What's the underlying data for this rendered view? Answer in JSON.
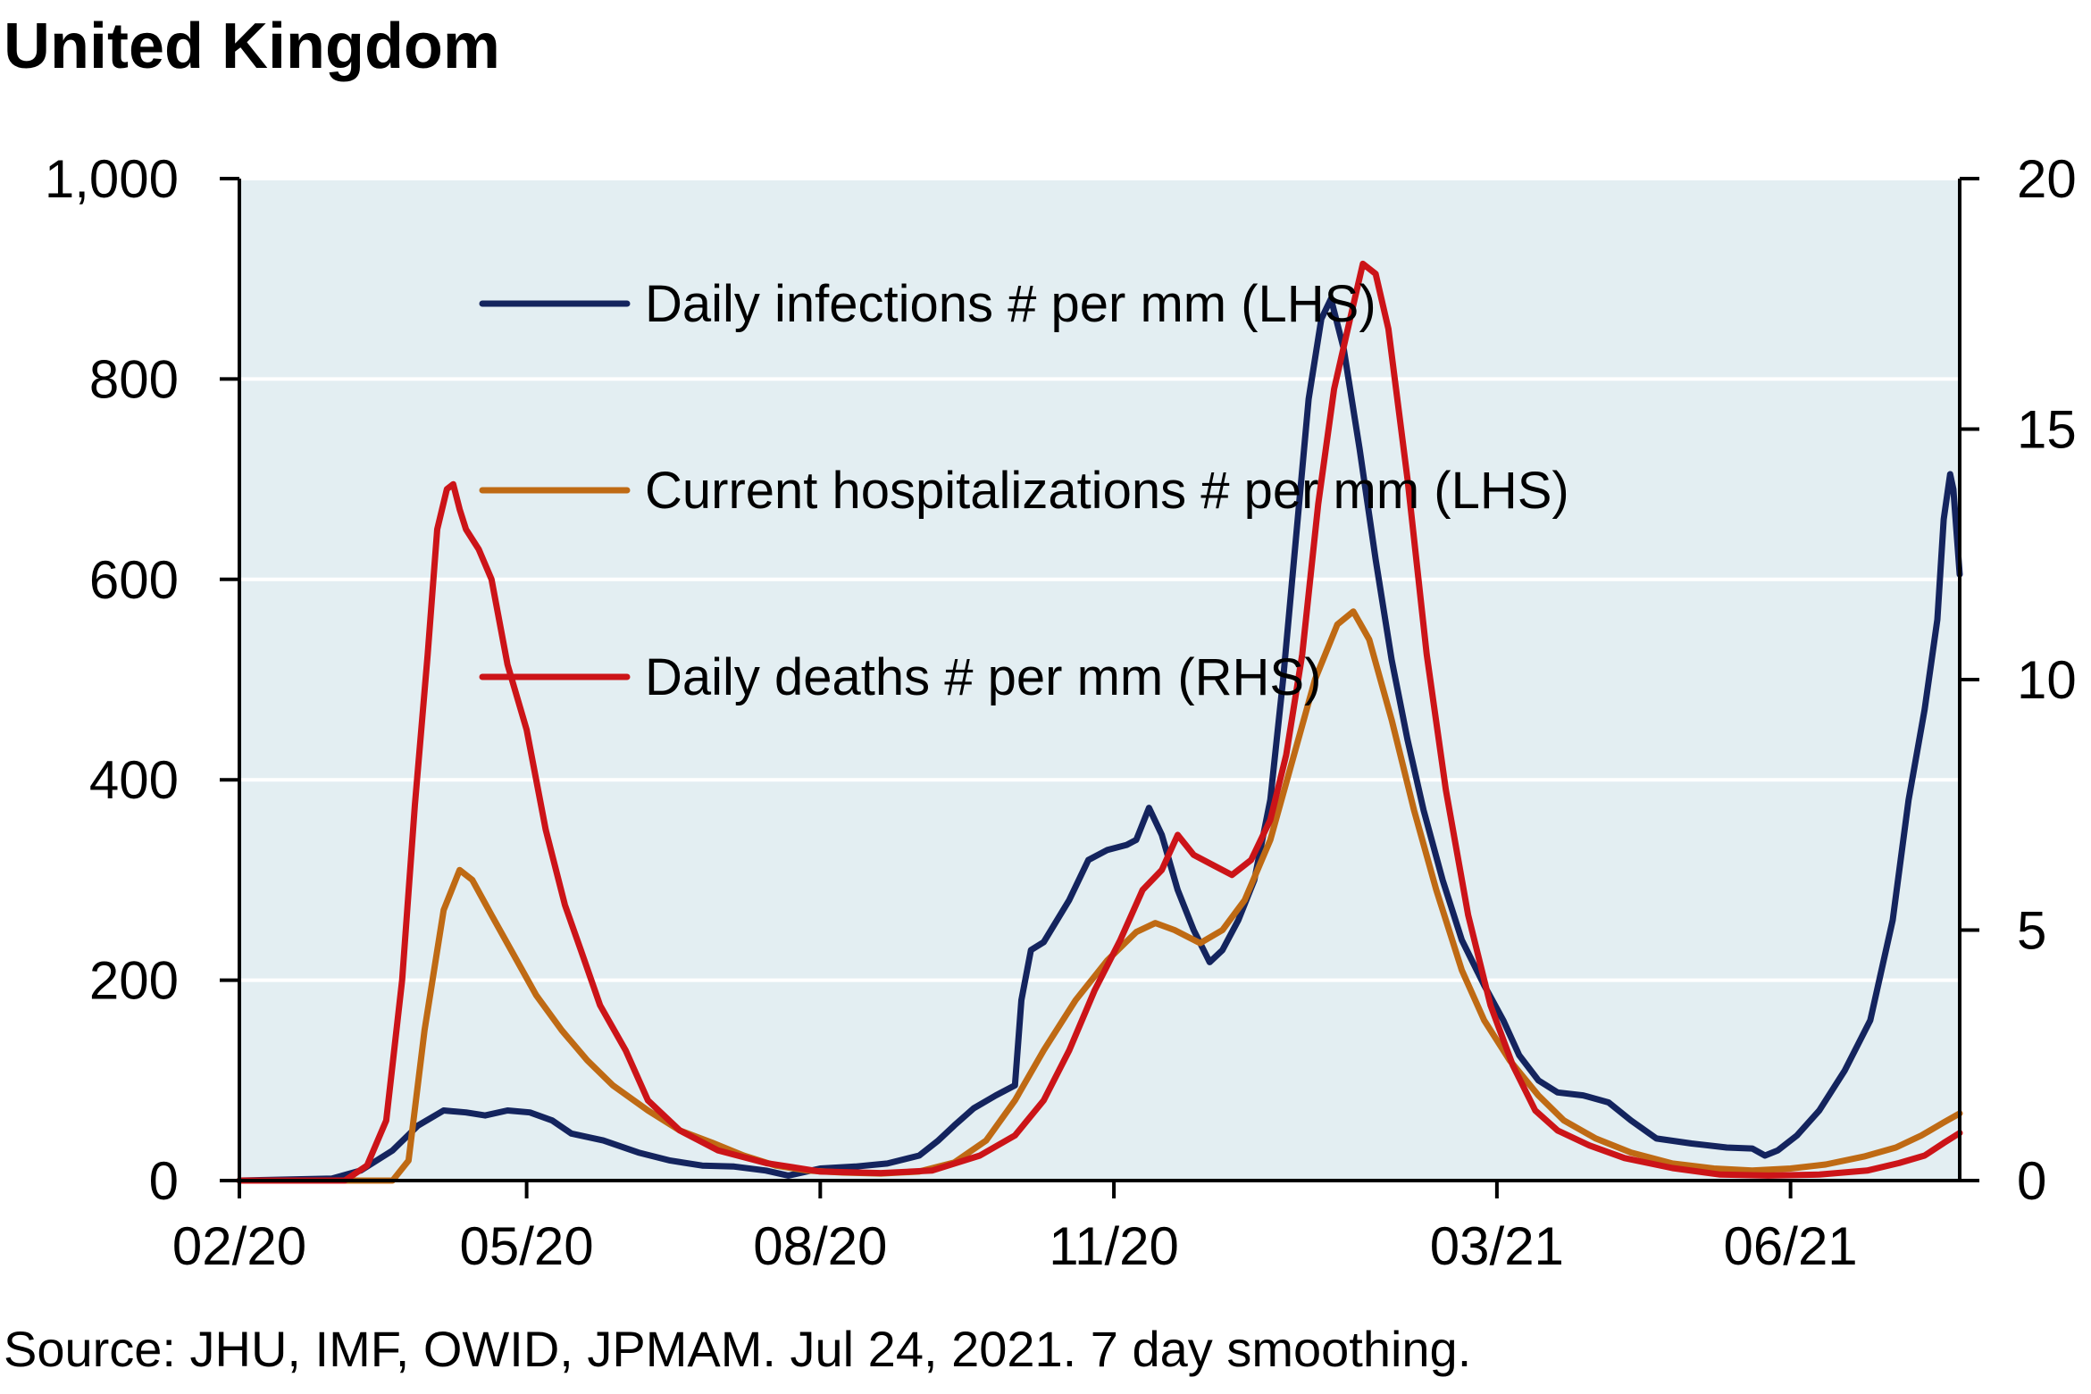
{
  "title": "United Kingdom",
  "source": "Source: JHU, IMF, OWID, JPMAM. Jul 24, 2021. 7 day smoothing.",
  "colors": {
    "plot_background": "#e3eef2",
    "gridline": "#ffffff",
    "infections": "#14245e",
    "hospitalizations": "#bf6a14",
    "deaths": "#cc1418",
    "axis": "#000000"
  },
  "chart_data": {
    "type": "line",
    "title": "United Kingdom",
    "xlabel": "",
    "ylabel": "",
    "y2label": "",
    "grid": true,
    "legend_position": "top-center",
    "ylim": [
      0,
      1000
    ],
    "y2lim": [
      0,
      20
    ],
    "y_ticks": [
      0,
      200,
      400,
      600,
      800,
      1000
    ],
    "y_tick_labels": [
      "0",
      "200",
      "400",
      "600",
      "800",
      "1,000"
    ],
    "y2_ticks": [
      0,
      5,
      10,
      15,
      20
    ],
    "y2_tick_labels": [
      "0",
      "5",
      "10",
      "15",
      "20"
    ],
    "xlim": [
      "2020-02-01",
      "2021-07-24"
    ],
    "x_ticks": [
      "2020-02-01",
      "2020-05-01",
      "2020-08-01",
      "2020-11-01",
      "2021-03-01",
      "2021-06-01"
    ],
    "x_tick_labels": [
      "02/20",
      "05/20",
      "08/20",
      "11/20",
      "03/21",
      "06/21"
    ],
    "series": [
      {
        "name": "Daily infections # per mm (LHS)",
        "axis": "left",
        "color_key": "infections",
        "points": [
          [
            "2020-02-01",
            0
          ],
          [
            "2020-03-01",
            2
          ],
          [
            "2020-03-10",
            10
          ],
          [
            "2020-03-20",
            30
          ],
          [
            "2020-03-28",
            55
          ],
          [
            "2020-04-05",
            70
          ],
          [
            "2020-04-12",
            68
          ],
          [
            "2020-04-18",
            65
          ],
          [
            "2020-04-25",
            70
          ],
          [
            "2020-05-02",
            68
          ],
          [
            "2020-05-09",
            60
          ],
          [
            "2020-05-15",
            47
          ],
          [
            "2020-05-25",
            40
          ],
          [
            "2020-06-05",
            28
          ],
          [
            "2020-06-15",
            20
          ],
          [
            "2020-06-25",
            15
          ],
          [
            "2020-07-05",
            14
          ],
          [
            "2020-07-15",
            10
          ],
          [
            "2020-07-22",
            5
          ],
          [
            "2020-08-01",
            12
          ],
          [
            "2020-08-12",
            14
          ],
          [
            "2020-08-22",
            17
          ],
          [
            "2020-09-01",
            25
          ],
          [
            "2020-09-07",
            40
          ],
          [
            "2020-09-12",
            55
          ],
          [
            "2020-09-18",
            72
          ],
          [
            "2020-09-25",
            85
          ],
          [
            "2020-10-01",
            95
          ],
          [
            "2020-10-03",
            180
          ],
          [
            "2020-10-06",
            230
          ],
          [
            "2020-10-10",
            238
          ],
          [
            "2020-10-18",
            280
          ],
          [
            "2020-10-24",
            320
          ],
          [
            "2020-10-30",
            330
          ],
          [
            "2020-11-05",
            335
          ],
          [
            "2020-11-08",
            340
          ],
          [
            "2020-11-12",
            372
          ],
          [
            "2020-11-16",
            345
          ],
          [
            "2020-11-21",
            290
          ],
          [
            "2020-11-26",
            250
          ],
          [
            "2020-12-01",
            218
          ],
          [
            "2020-12-05",
            230
          ],
          [
            "2020-12-10",
            260
          ],
          [
            "2020-12-15",
            300
          ],
          [
            "2020-12-20",
            380
          ],
          [
            "2020-12-24",
            500
          ],
          [
            "2020-12-28",
            640
          ],
          [
            "2021-01-01",
            780
          ],
          [
            "2021-01-05",
            860
          ],
          [
            "2021-01-08",
            880
          ],
          [
            "2021-01-12",
            830
          ],
          [
            "2021-01-17",
            730
          ],
          [
            "2021-01-22",
            620
          ],
          [
            "2021-01-27",
            520
          ],
          [
            "2021-02-01",
            440
          ],
          [
            "2021-02-06",
            370
          ],
          [
            "2021-02-12",
            300
          ],
          [
            "2021-02-18",
            240
          ],
          [
            "2021-02-25",
            195
          ],
          [
            "2021-03-03",
            160
          ],
          [
            "2021-03-08",
            125
          ],
          [
            "2021-03-14",
            100
          ],
          [
            "2021-03-20",
            88
          ],
          [
            "2021-03-28",
            85
          ],
          [
            "2021-04-05",
            78
          ],
          [
            "2021-04-12",
            60
          ],
          [
            "2021-04-20",
            42
          ],
          [
            "2021-05-01",
            37
          ],
          [
            "2021-05-12",
            33
          ],
          [
            "2021-05-20",
            32
          ],
          [
            "2021-05-24",
            25
          ],
          [
            "2021-05-28",
            30
          ],
          [
            "2021-06-03",
            45
          ],
          [
            "2021-06-10",
            70
          ],
          [
            "2021-06-18",
            110
          ],
          [
            "2021-06-26",
            160
          ],
          [
            "2021-07-03",
            260
          ],
          [
            "2021-07-08",
            380
          ],
          [
            "2021-07-13",
            470
          ],
          [
            "2021-07-17",
            560
          ],
          [
            "2021-07-19",
            660
          ],
          [
            "2021-07-21",
            705
          ],
          [
            "2021-07-22",
            690
          ],
          [
            "2021-07-24",
            605
          ]
        ]
      },
      {
        "name": "Current hospitalizations # per mm (LHS)",
        "axis": "left",
        "color_key": "hospitalizations",
        "points": [
          [
            "2020-02-01",
            0
          ],
          [
            "2020-03-20",
            0
          ],
          [
            "2020-03-25",
            20
          ],
          [
            "2020-03-30",
            150
          ],
          [
            "2020-04-05",
            270
          ],
          [
            "2020-04-10",
            310
          ],
          [
            "2020-04-14",
            300
          ],
          [
            "2020-04-20",
            265
          ],
          [
            "2020-04-27",
            225
          ],
          [
            "2020-05-04",
            185
          ],
          [
            "2020-05-12",
            150
          ],
          [
            "2020-05-20",
            120
          ],
          [
            "2020-05-28",
            95
          ],
          [
            "2020-06-08",
            70
          ],
          [
            "2020-06-18",
            50
          ],
          [
            "2020-06-28",
            38
          ],
          [
            "2020-07-08",
            25
          ],
          [
            "2020-07-18",
            15
          ],
          [
            "2020-07-28",
            10
          ],
          [
            "2020-08-08",
            8
          ],
          [
            "2020-08-20",
            7
          ],
          [
            "2020-09-01",
            9
          ],
          [
            "2020-09-12",
            18
          ],
          [
            "2020-09-22",
            40
          ],
          [
            "2020-10-01",
            80
          ],
          [
            "2020-10-10",
            130
          ],
          [
            "2020-10-20",
            180
          ],
          [
            "2020-10-30",
            220
          ],
          [
            "2020-11-08",
            248
          ],
          [
            "2020-11-14",
            257
          ],
          [
            "2020-11-20",
            250
          ],
          [
            "2020-11-28",
            237
          ],
          [
            "2020-12-05",
            250
          ],
          [
            "2020-12-12",
            280
          ],
          [
            "2020-12-20",
            340
          ],
          [
            "2020-12-27",
            420
          ],
          [
            "2021-01-03",
            500
          ],
          [
            "2021-01-10",
            555
          ],
          [
            "2021-01-15",
            568
          ],
          [
            "2021-01-20",
            540
          ],
          [
            "2021-01-27",
            460
          ],
          [
            "2021-02-03",
            370
          ],
          [
            "2021-02-10",
            290
          ],
          [
            "2021-02-18",
            210
          ],
          [
            "2021-02-25",
            160
          ],
          [
            "2021-03-05",
            120
          ],
          [
            "2021-03-14",
            85
          ],
          [
            "2021-03-22",
            60
          ],
          [
            "2021-04-01",
            42
          ],
          [
            "2021-04-12",
            28
          ],
          [
            "2021-04-25",
            17
          ],
          [
            "2021-05-08",
            12
          ],
          [
            "2021-05-20",
            10
          ],
          [
            "2021-06-01",
            12
          ],
          [
            "2021-06-12",
            16
          ],
          [
            "2021-06-24",
            24
          ],
          [
            "2021-07-04",
            33
          ],
          [
            "2021-07-12",
            45
          ],
          [
            "2021-07-19",
            58
          ],
          [
            "2021-07-24",
            67
          ]
        ]
      },
      {
        "name": "Daily deaths # per mm (RHS)",
        "axis": "right",
        "color_key": "deaths",
        "points": [
          [
            "2020-02-01",
            0
          ],
          [
            "2020-03-05",
            0
          ],
          [
            "2020-03-12",
            0.3
          ],
          [
            "2020-03-18",
            1.2
          ],
          [
            "2020-03-23",
            4.0
          ],
          [
            "2020-03-27",
            7.5
          ],
          [
            "2020-03-31",
            10.5
          ],
          [
            "2020-04-03",
            13.0
          ],
          [
            "2020-04-06",
            13.8
          ],
          [
            "2020-04-08",
            13.9
          ],
          [
            "2020-04-10",
            13.4
          ],
          [
            "2020-04-12",
            13.0
          ],
          [
            "2020-04-16",
            12.6
          ],
          [
            "2020-04-20",
            12.0
          ],
          [
            "2020-04-25",
            10.3
          ],
          [
            "2020-05-01",
            9.0
          ],
          [
            "2020-05-07",
            7.0
          ],
          [
            "2020-05-13",
            5.5
          ],
          [
            "2020-05-18",
            4.6
          ],
          [
            "2020-05-24",
            3.5
          ],
          [
            "2020-06-01",
            2.6
          ],
          [
            "2020-06-08",
            1.6
          ],
          [
            "2020-06-18",
            1.0
          ],
          [
            "2020-06-30",
            0.6
          ],
          [
            "2020-07-15",
            0.35
          ],
          [
            "2020-08-01",
            0.18
          ],
          [
            "2020-08-20",
            0.15
          ],
          [
            "2020-09-05",
            0.2
          ],
          [
            "2020-09-20",
            0.5
          ],
          [
            "2020-10-01",
            0.9
          ],
          [
            "2020-10-10",
            1.6
          ],
          [
            "2020-10-18",
            2.6
          ],
          [
            "2020-10-26",
            3.8
          ],
          [
            "2020-11-03",
            4.8
          ],
          [
            "2020-11-10",
            5.8
          ],
          [
            "2020-11-16",
            6.2
          ],
          [
            "2020-11-21",
            6.9
          ],
          [
            "2020-11-26",
            6.5
          ],
          [
            "2020-12-02",
            6.3
          ],
          [
            "2020-12-08",
            6.1
          ],
          [
            "2020-12-14",
            6.4
          ],
          [
            "2020-12-20",
            7.2
          ],
          [
            "2020-12-25",
            8.5
          ],
          [
            "2020-12-30",
            10.5
          ],
          [
            "2021-01-04",
            13.5
          ],
          [
            "2021-01-09",
            15.8
          ],
          [
            "2021-01-14",
            17.2
          ],
          [
            "2021-01-18",
            18.3
          ],
          [
            "2021-01-22",
            18.1
          ],
          [
            "2021-01-26",
            17.0
          ],
          [
            "2021-02-01",
            14.0
          ],
          [
            "2021-02-07",
            10.5
          ],
          [
            "2021-02-13",
            7.8
          ],
          [
            "2021-02-20",
            5.3
          ],
          [
            "2021-02-27",
            3.5
          ],
          [
            "2021-03-06",
            2.3
          ],
          [
            "2021-03-13",
            1.4
          ],
          [
            "2021-03-20",
            1.0
          ],
          [
            "2021-03-30",
            0.7
          ],
          [
            "2021-04-10",
            0.45
          ],
          [
            "2021-04-25",
            0.25
          ],
          [
            "2021-05-10",
            0.12
          ],
          [
            "2021-05-25",
            0.1
          ],
          [
            "2021-06-10",
            0.12
          ],
          [
            "2021-06-25",
            0.2
          ],
          [
            "2021-07-05",
            0.35
          ],
          [
            "2021-07-13",
            0.5
          ],
          [
            "2021-07-19",
            0.75
          ],
          [
            "2021-07-24",
            0.95
          ]
        ]
      }
    ]
  }
}
